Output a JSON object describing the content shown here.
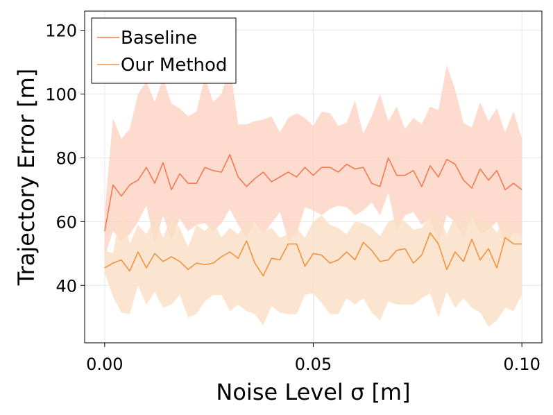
{
  "chart_data": {
    "type": "line",
    "title": "",
    "xlabel": "Noise Level σ [m]",
    "ylabel": "Trajectory Error [m]",
    "xlim": [
      -0.0048,
      0.1048
    ],
    "ylim": [
      22,
      126
    ],
    "xticks": [
      0.0,
      0.05,
      0.1
    ],
    "xtick_labels": [
      "0.00",
      "0.05",
      "0.10"
    ],
    "yticks": [
      40,
      60,
      80,
      100,
      120
    ],
    "ytick_labels": [
      "40",
      "60",
      "80",
      "100",
      "120"
    ],
    "grid": true,
    "legend_position": "top-left",
    "x": [
      0.0,
      0.002,
      0.004,
      0.006,
      0.008,
      0.01,
      0.012,
      0.014,
      0.016,
      0.018,
      0.02,
      0.022,
      0.024,
      0.026,
      0.028,
      0.03,
      0.032,
      0.034,
      0.036,
      0.038,
      0.04,
      0.042,
      0.044,
      0.046,
      0.048,
      0.05,
      0.052,
      0.054,
      0.056,
      0.058,
      0.06,
      0.062,
      0.064,
      0.066,
      0.068,
      0.07,
      0.072,
      0.074,
      0.076,
      0.078,
      0.08,
      0.082,
      0.084,
      0.086,
      0.088,
      0.09,
      0.092,
      0.094,
      0.096,
      0.098,
      0.1
    ],
    "series": [
      {
        "name": "Baseline",
        "color": "#f4794f",
        "band_color": "#fdd2c3",
        "values": [
          57,
          71.5,
          68,
          71.5,
          73,
          77,
          72,
          78.5,
          70,
          75,
          72,
          72,
          77,
          76,
          75.5,
          81,
          74,
          71,
          73.5,
          75.5,
          72.5,
          74,
          75.5,
          74,
          77,
          74.5,
          77,
          77,
          75.5,
          78,
          76.5,
          77,
          72,
          71,
          80,
          74.5,
          74.5,
          76,
          71,
          77.5,
          74,
          79.5,
          78,
          73,
          70.5,
          76.5,
          73,
          76,
          70,
          72,
          70
        ],
        "upper": [
          63,
          92.5,
          86,
          89,
          100,
          104,
          97.5,
          105,
          97,
          95.5,
          93,
          94.5,
          105.5,
          97.5,
          100,
          109,
          90.5,
          90.5,
          91.5,
          92,
          93,
          88,
          92.5,
          94,
          92.5,
          90,
          94.5,
          94,
          90,
          91,
          98,
          87.5,
          93,
          100,
          91.5,
          96,
          89,
          92.5,
          90.5,
          96,
          95,
          109,
          101.5,
          91,
          89.5,
          97.5,
          91.5,
          95.5,
          88,
          94.5,
          86
        ],
        "lower": [
          49,
          57,
          54,
          56,
          60,
          65,
          53,
          62,
          54,
          61,
          57,
          59,
          59.5,
          57,
          59.5,
          64,
          59,
          55,
          60,
          56,
          59.5,
          63,
          54,
          56,
          64.5,
          63.5,
          62,
          64,
          65,
          64.5,
          62,
          63.5,
          66,
          62,
          69,
          57,
          62,
          63,
          59,
          61,
          53,
          62,
          60,
          55,
          61.5,
          56,
          57.5,
          60,
          53,
          56.5,
          56
        ]
      },
      {
        "name": "Our Method",
        "color": "#f0923e",
        "band_color": "#fadfc6",
        "values": [
          45.5,
          47,
          48,
          44.5,
          50.5,
          45.5,
          50,
          47.5,
          49,
          47.5,
          45,
          47,
          46.5,
          47,
          49,
          50.5,
          48.5,
          54,
          47,
          43,
          48.5,
          48,
          53,
          53,
          46,
          50,
          49.5,
          47,
          48,
          50.5,
          48,
          53.5,
          51,
          47.5,
          48,
          51,
          51.5,
          47,
          49.5,
          56.5,
          53,
          45,
          50.5,
          47.5,
          54.5,
          48,
          51.5,
          45.5,
          55,
          53,
          53
        ],
        "upper": [
          51,
          50,
          65,
          53,
          59,
          56,
          61,
          55,
          61.5,
          58,
          52,
          59,
          57,
          60,
          55,
          58,
          56,
          60,
          60,
          57,
          58,
          55,
          56,
          58,
          55,
          60,
          62,
          59,
          58,
          56,
          60,
          59.5,
          58,
          55.5,
          60,
          61,
          60,
          57.5,
          58,
          62,
          62,
          56,
          62,
          59,
          64,
          60,
          60,
          56.5,
          61,
          57,
          56
        ],
        "lower": [
          44,
          36.5,
          31.5,
          31,
          40,
          34,
          38,
          33,
          34,
          37,
          30,
          31,
          35,
          37,
          37,
          32,
          34,
          32,
          31,
          27.5,
          33.5,
          31.5,
          31,
          31,
          37,
          37.5,
          34.5,
          31,
          31,
          36,
          34,
          36,
          31.5,
          29,
          35,
          34,
          34,
          34,
          36,
          37.5,
          30,
          38,
          33,
          36,
          33,
          31.5,
          27,
          29,
          33,
          32,
          37
        ]
      }
    ]
  }
}
